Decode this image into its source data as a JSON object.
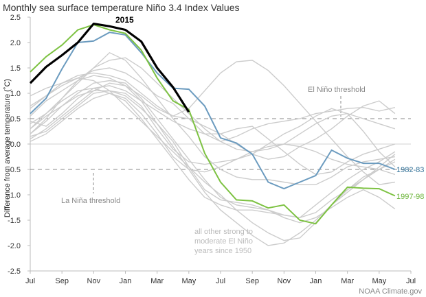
{
  "chart_data": {
    "type": "line",
    "title": "Monthly sea surface temperature Niño 3.4 Index Values",
    "ylabel": "Difference from average temperature (˚C)",
    "xlabel": "",
    "ylim": [
      -2.5,
      2.5
    ],
    "y_ticks": [
      "2.5",
      "2.0",
      "1.5",
      "1.0",
      "0.5",
      "0.0",
      "-0.5",
      "-1.0",
      "-1.5",
      "-2.0",
      "-2.5"
    ],
    "x_ticks": [
      "Jul",
      "Sep",
      "Nov",
      "Jan",
      "Mar",
      "May",
      "Jul",
      "Sep",
      "Nov",
      "Jan",
      "Mar",
      "May",
      "Jul"
    ],
    "thresholds": {
      "el_nino": 0.5,
      "la_nina": -0.5
    },
    "annotations": {
      "el_nino": "El Niño threshold",
      "la_nina": "La Niña threshold",
      "others": [
        "all other strong to",
        "moderate El Niño",
        "years since 1950"
      ]
    },
    "credit": "NOAA Climate.gov",
    "colors": {
      "s2015": "#000000",
      "s1997": "#7dc242",
      "s1982": "#6b9bbf",
      "others": "#cccccc",
      "label1982": "#2f6f96",
      "label1997": "#6cb53a"
    },
    "series": [
      {
        "name": "2015",
        "label": "2015",
        "values": [
          1.2,
          1.52,
          1.75,
          2.0,
          2.37,
          2.32,
          2.25,
          2.02,
          1.5,
          1.12,
          0.63
        ]
      },
      {
        "name": "1997-98",
        "label": "1997-98",
        "values": [
          1.42,
          1.72,
          1.95,
          2.25,
          2.35,
          2.25,
          2.18,
          1.85,
          1.3,
          0.85,
          0.68,
          -0.18,
          -0.75,
          -1.1,
          -1.12,
          -1.26,
          -1.2,
          -1.5,
          -1.57,
          -1.2,
          -0.85,
          -0.87,
          -0.88,
          -1.02
        ]
      },
      {
        "name": "1982-83",
        "label": "1982-83",
        "values": [
          0.6,
          0.9,
          1.48,
          2.0,
          2.03,
          2.2,
          2.15,
          1.8,
          1.4,
          1.1,
          1.08,
          0.75,
          0.12,
          0.02,
          -0.2,
          -0.75,
          -0.88,
          -0.75,
          -0.62,
          -0.12,
          -0.28,
          -0.38,
          -0.38,
          -0.5
        ]
      },
      {
        "name": "other-1",
        "values": [
          0.2,
          0.45,
          0.75,
          1.0,
          1.2,
          1.25,
          1.2,
          0.9,
          0.5,
          0.1,
          -0.3,
          -0.7,
          -1.05,
          -1.2,
          -1.25,
          -1.3,
          -1.4,
          -1.45,
          -1.35,
          -1.1,
          -0.9,
          -0.7,
          -0.5,
          -0.3
        ]
      },
      {
        "name": "other-2",
        "values": [
          0.55,
          0.85,
          1.05,
          1.25,
          1.35,
          1.3,
          1.15,
          0.85,
          0.4,
          -0.05,
          -0.5,
          -0.95,
          -1.3,
          -1.55,
          -1.8,
          -2.0,
          -1.95,
          -1.75,
          -1.5,
          -1.2,
          -0.95,
          -0.7,
          -0.45,
          -0.2
        ]
      },
      {
        "name": "other-3",
        "values": [
          0.95,
          1.1,
          1.2,
          1.3,
          1.25,
          1.05,
          0.75,
          0.45,
          0.15,
          -0.15,
          -0.45,
          -0.75,
          -1.0,
          -1.3,
          -1.55,
          -1.75,
          -1.9,
          -1.85,
          -1.55,
          -1.2,
          -0.9,
          -0.65,
          -0.5,
          -0.35
        ]
      },
      {
        "name": "other-4",
        "values": [
          0.4,
          0.6,
          0.9,
          1.2,
          1.5,
          1.8,
          1.65,
          1.3,
          0.9,
          0.5,
          0.15,
          -0.25,
          -0.5,
          -0.65,
          -0.7,
          -0.7,
          -0.75,
          -0.8,
          -0.8,
          -0.65,
          -0.45,
          -0.35,
          -0.3,
          -0.25
        ]
      },
      {
        "name": "other-5",
        "values": [
          0.1,
          0.3,
          0.55,
          0.8,
          1.05,
          1.2,
          1.15,
          0.95,
          0.7,
          0.55,
          0.5,
          0.35,
          0.2,
          0.0,
          -0.2,
          -0.3,
          -0.25,
          -0.05,
          0.1,
          0.3,
          0.55,
          0.75,
          0.85,
          0.6
        ]
      },
      {
        "name": "other-6",
        "values": [
          0.75,
          0.95,
          1.15,
          1.3,
          1.45,
          1.5,
          1.4,
          1.2,
          0.95,
          0.8,
          0.5,
          0.2,
          0.05,
          0.15,
          0.3,
          0.4,
          0.45,
          0.5,
          0.6,
          0.65,
          0.7,
          0.72,
          0.65,
          0.72
        ]
      },
      {
        "name": "other-7",
        "values": [
          0.2,
          0.5,
          0.9,
          1.25,
          1.5,
          1.65,
          1.7,
          1.5,
          1.2,
          0.9,
          0.6,
          0.3,
          0.05,
          -0.1,
          -0.15,
          -0.1,
          0.0,
          0.2,
          0.4,
          0.55,
          0.6,
          0.5,
          0.4,
          0.3
        ]
      },
      {
        "name": "other-8",
        "values": [
          0.3,
          0.6,
          0.85,
          1.05,
          1.1,
          1.0,
          0.85,
          0.5,
          0.1,
          -0.3,
          -0.7,
          -1.05,
          -1.2,
          -1.3,
          -1.3,
          -1.35,
          -1.4,
          -1.45,
          -1.2,
          -0.95,
          -0.7,
          -0.5,
          -0.35,
          -0.15
        ]
      },
      {
        "name": "other-9",
        "values": [
          0.05,
          0.2,
          0.45,
          0.7,
          0.9,
          1.0,
          0.9,
          0.6,
          0.2,
          -0.25,
          -0.5,
          -0.55,
          -0.45,
          -0.3,
          -0.15,
          -0.05,
          0.0,
          -0.05,
          -0.15,
          -0.3,
          -0.4,
          -0.45,
          -0.5,
          -0.6
        ]
      },
      {
        "name": "other-10",
        "values": [
          0.7,
          0.95,
          1.2,
          1.35,
          1.4,
          1.35,
          1.25,
          1.0,
          0.75,
          0.55,
          0.7,
          1.05,
          1.4,
          1.62,
          1.65,
          1.45,
          1.15,
          0.8,
          0.45,
          0.1,
          -0.25,
          -0.55,
          -0.8,
          -0.75
        ]
      },
      {
        "name": "other-11",
        "values": [
          0.45,
          0.35,
          0.6,
          0.9,
          1.1,
          1.15,
          1.05,
          0.85,
          0.65,
          0.45,
          0.3,
          0.2,
          0.2,
          0.3,
          0.35,
          0.1,
          -0.15,
          -0.4,
          -0.6,
          -0.55,
          -0.35,
          -0.2,
          -0.1,
          0.0
        ]
      },
      {
        "name": "other-12",
        "values": [
          0.15,
          0.25,
          0.5,
          0.75,
          1.0,
          1.05,
          1.0,
          0.75,
          0.3,
          -0.1,
          -0.35,
          -0.4,
          -0.35,
          -0.3,
          -0.2,
          0.0,
          0.2,
          0.35,
          0.55,
          0.7,
          0.6,
          0.25,
          -0.15,
          -0.45
        ]
      },
      {
        "name": "other-13",
        "values": [
          0.3,
          0.55,
          0.75,
          0.95,
          1.05,
          1.05,
          0.95,
          0.7,
          0.4,
          0.05,
          -0.45,
          -0.9,
          -1.1,
          -1.15,
          -1.2,
          -1.3,
          -1.45,
          -1.55,
          -1.45,
          -1.25,
          -1.05,
          -0.9,
          -1.05,
          -1.28
        ]
      }
    ]
  }
}
